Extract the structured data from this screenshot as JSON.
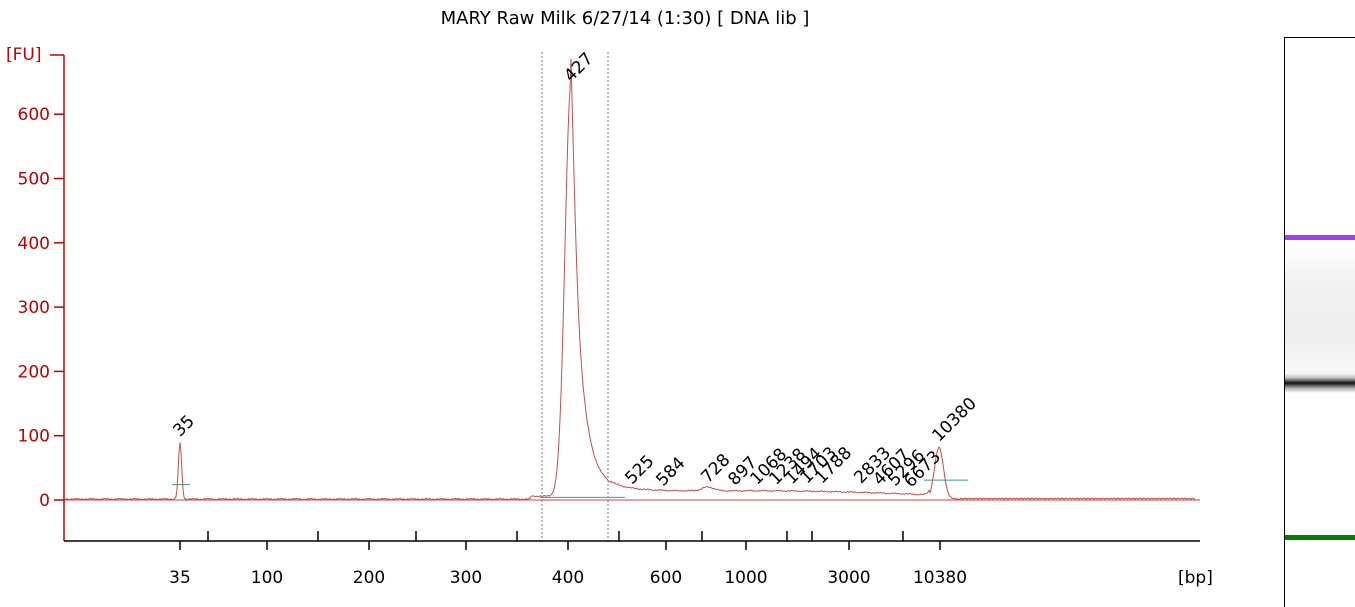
{
  "chart_data": {
    "type": "line",
    "title": "MARY Raw Milk 6/27/14 (1:30)  [ DNA lib ]",
    "ylabel": "[FU]",
    "xlabel": "[bp]",
    "y_ticks": [
      0,
      100,
      200,
      300,
      400,
      500,
      600
    ],
    "ylim": [
      -65,
      680
    ],
    "x_tick_labels": [
      "35",
      "100",
      "200",
      "300",
      "400",
      "600",
      "1000",
      "3000",
      "10380"
    ],
    "series_color": "#c0504d",
    "peaks": [
      {
        "size": "35",
        "fu": 88,
        "color": "#008000"
      },
      {
        "size": "427",
        "fu": 640,
        "color": "#000000"
      },
      {
        "size": "525",
        "fu": 14,
        "color": "#000000"
      },
      {
        "size": "584",
        "fu": 11,
        "color": "#000000"
      },
      {
        "size": "728",
        "fu": 16,
        "color": "#000000"
      },
      {
        "size": "897",
        "fu": 12,
        "color": "#000000"
      },
      {
        "size": "1068",
        "fu": 13,
        "color": "#000000"
      },
      {
        "size": "1238",
        "fu": 13,
        "color": "#000000"
      },
      {
        "size": "1494",
        "fu": 14,
        "color": "#000000"
      },
      {
        "size": "1703",
        "fu": 15,
        "color": "#000000"
      },
      {
        "size": "1788",
        "fu": 15,
        "color": "#000000"
      },
      {
        "size": "2833",
        "fu": 15,
        "color": "#000000"
      },
      {
        "size": "4607",
        "fu": 12,
        "color": "#000000"
      },
      {
        "size": "5296",
        "fu": 11,
        "color": "#000000"
      },
      {
        "size": "6673",
        "fu": 9,
        "color": "#000000"
      },
      {
        "size": "10380",
        "fu": 80,
        "color": "#9b30e0"
      }
    ]
  }
}
